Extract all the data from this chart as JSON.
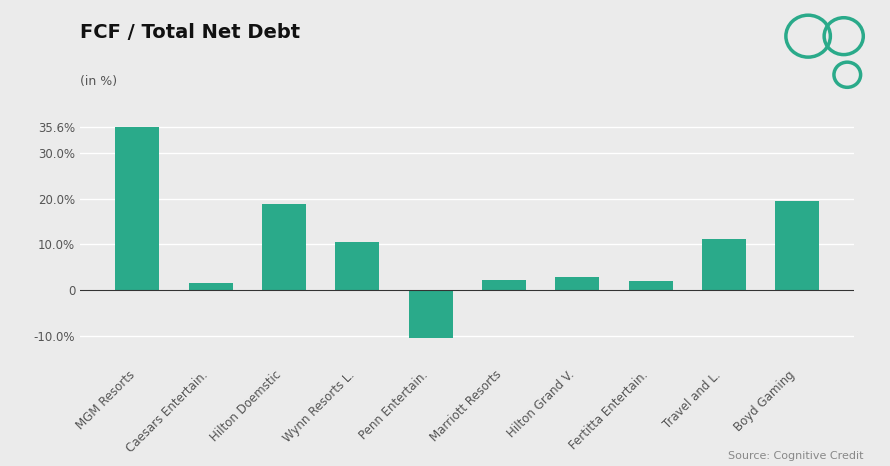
{
  "title": "FCF / Total Net Debt",
  "subtitle": "(in %)",
  "categories": [
    "MGM Resorts",
    "Caesars Entertain.",
    "Hilton Doemstic",
    "Wynn Resorts L.",
    "Penn Entertain.",
    "Marriott Resorts",
    "Hilton Grand V.",
    "Fertitta Entertain.",
    "Travel and L.",
    "Boyd Gaming"
  ],
  "values": [
    35.6,
    1.5,
    18.8,
    10.6,
    -10.5,
    2.2,
    3.0,
    2.0,
    11.2,
    19.4
  ],
  "bar_color": "#2aaa8a",
  "background_color": "#ebebeb",
  "ytick_positions": [
    -10.0,
    0.0,
    10.0,
    20.0,
    30.0,
    35.6
  ],
  "ytick_labels": [
    "-10.0%",
    "0",
    "10.0%",
    "20.0%",
    "30.0%",
    "35.6%"
  ],
  "ymin": -16,
  "ymax": 40,
  "source_text": "Source: Cognitive Credit",
  "title_fontsize": 14,
  "subtitle_fontsize": 9,
  "tick_fontsize": 8.5,
  "source_fontsize": 8,
  "logo_color": "#2aaa8a"
}
